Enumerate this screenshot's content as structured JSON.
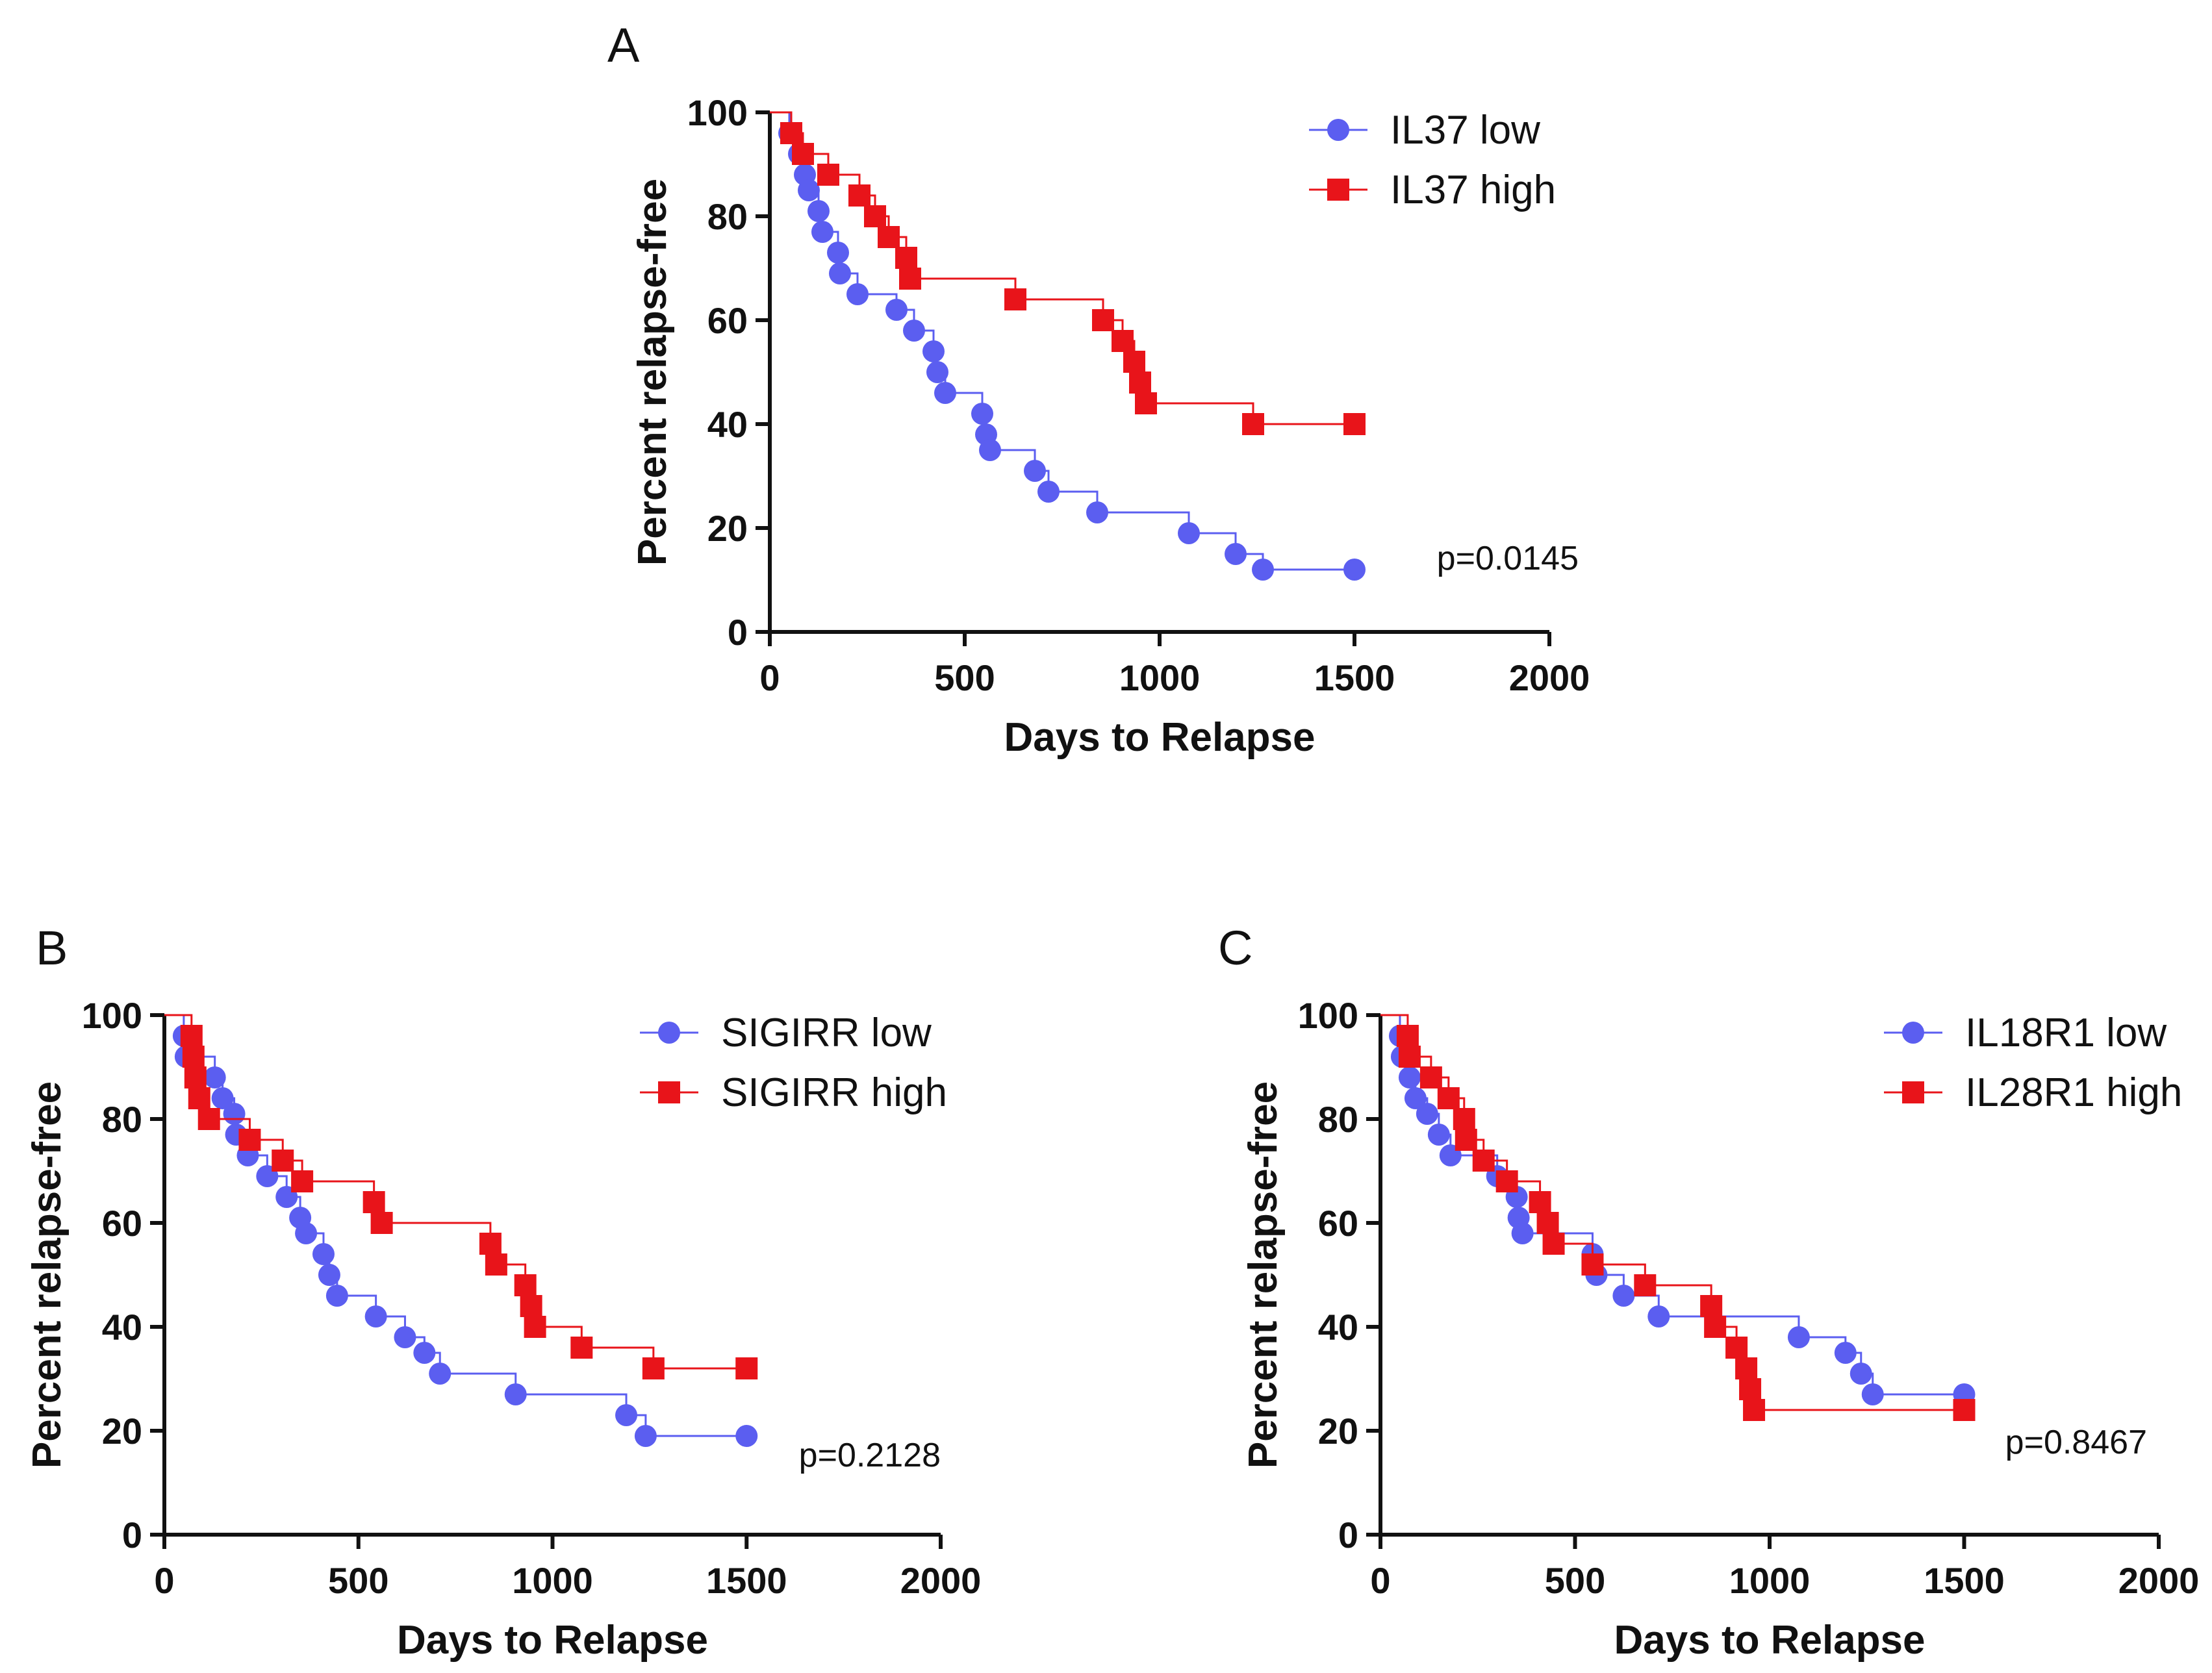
{
  "chart_data": [
    {
      "panel_label": "A",
      "type": "line",
      "title": "",
      "xlabel": "Days to Relapse",
      "ylabel": "Percent relapse-free",
      "xlim": [
        0,
        2000
      ],
      "ylim": [
        0,
        100
      ],
      "xticks": [
        "0",
        "500",
        "1000",
        "1500",
        "2000"
      ],
      "yticks": [
        "0",
        "20",
        "40",
        "60",
        "80",
        "100"
      ],
      "legend_position": "top-right",
      "annotation": "p=0.0145",
      "series": [
        {
          "name": "IL37 low",
          "color": "#5b5ef0",
          "marker": "circle",
          "steps": [
            [
              0,
              100
            ],
            [
              50,
              96
            ],
            [
              75,
              92
            ],
            [
              90,
              88
            ],
            [
              100,
              85
            ],
            [
              125,
              81
            ],
            [
              135,
              77
            ],
            [
              175,
              73
            ],
            [
              180,
              69
            ],
            [
              225,
              65
            ],
            [
              325,
              62
            ],
            [
              370,
              58
            ],
            [
              420,
              54
            ],
            [
              430,
              50
            ],
            [
              450,
              46
            ],
            [
              545,
              42
            ],
            [
              555,
              38
            ],
            [
              565,
              35
            ],
            [
              680,
              31
            ],
            [
              715,
              27
            ],
            [
              840,
              23
            ],
            [
              1075,
              19
            ],
            [
              1195,
              15
            ],
            [
              1265,
              12
            ],
            [
              1500,
              12
            ]
          ],
          "markers": [
            [
              50,
              96
            ],
            [
              75,
              92
            ],
            [
              90,
              88
            ],
            [
              100,
              85
            ],
            [
              125,
              81
            ],
            [
              135,
              77
            ],
            [
              175,
              73
            ],
            [
              180,
              69
            ],
            [
              225,
              65
            ],
            [
              325,
              62
            ],
            [
              370,
              58
            ],
            [
              420,
              54
            ],
            [
              430,
              50
            ],
            [
              450,
              46
            ],
            [
              545,
              42
            ],
            [
              555,
              38
            ],
            [
              565,
              35
            ],
            [
              680,
              31
            ],
            [
              715,
              27
            ],
            [
              840,
              23
            ],
            [
              1075,
              19
            ],
            [
              1195,
              15
            ],
            [
              1265,
              12
            ],
            [
              1500,
              12
            ]
          ]
        },
        {
          "name": "IL37 high",
          "color": "#e8141a",
          "marker": "square",
          "steps": [
            [
              0,
              100
            ],
            [
              55,
              96
            ],
            [
              85,
              92
            ],
            [
              150,
              88
            ],
            [
              230,
              84
            ],
            [
              270,
              80
            ],
            [
              305,
              76
            ],
            [
              350,
              72
            ],
            [
              360,
              68
            ],
            [
              630,
              64
            ],
            [
              855,
              60
            ],
            [
              905,
              56
            ],
            [
              935,
              52
            ],
            [
              950,
              48
            ],
            [
              965,
              44
            ],
            [
              1240,
              40
            ],
            [
              1500,
              40
            ]
          ],
          "markers": [
            [
              55,
              96
            ],
            [
              85,
              92
            ],
            [
              150,
              88
            ],
            [
              230,
              84
            ],
            [
              270,
              80
            ],
            [
              305,
              76
            ],
            [
              350,
              72
            ],
            [
              360,
              68
            ],
            [
              630,
              64
            ],
            [
              855,
              60
            ],
            [
              905,
              56
            ],
            [
              935,
              52
            ],
            [
              950,
              48
            ],
            [
              965,
              44
            ],
            [
              1240,
              40
            ],
            [
              1500,
              40
            ]
          ]
        }
      ]
    },
    {
      "panel_label": "B",
      "type": "line",
      "title": "",
      "xlabel": "Days to Relapse",
      "ylabel": "Percent relapse-free",
      "xlim": [
        0,
        2000
      ],
      "ylim": [
        0,
        100
      ],
      "xticks": [
        "0",
        "500",
        "1000",
        "1500",
        "2000"
      ],
      "yticks": [
        "0",
        "20",
        "40",
        "60",
        "80",
        "100"
      ],
      "legend_position": "top-right",
      "annotation": "p=0.2128",
      "series": [
        {
          "name": "SIGIRR low",
          "color": "#5b5ef0",
          "marker": "circle",
          "steps": [
            [
              0,
              100
            ],
            [
              50,
              96
            ],
            [
              55,
              92
            ],
            [
              130,
              88
            ],
            [
              150,
              84
            ],
            [
              180,
              81
            ],
            [
              185,
              77
            ],
            [
              215,
              73
            ],
            [
              265,
              69
            ],
            [
              315,
              65
            ],
            [
              350,
              61
            ],
            [
              365,
              58
            ],
            [
              410,
              54
            ],
            [
              425,
              50
            ],
            [
              445,
              46
            ],
            [
              545,
              42
            ],
            [
              620,
              38
            ],
            [
              670,
              35
            ],
            [
              710,
              31
            ],
            [
              905,
              27
            ],
            [
              1190,
              23
            ],
            [
              1240,
              19
            ],
            [
              1500,
              19
            ]
          ],
          "markers": [
            [
              50,
              96
            ],
            [
              55,
              92
            ],
            [
              130,
              88
            ],
            [
              150,
              84
            ],
            [
              180,
              81
            ],
            [
              185,
              77
            ],
            [
              215,
              73
            ],
            [
              265,
              69
            ],
            [
              315,
              65
            ],
            [
              350,
              61
            ],
            [
              365,
              58
            ],
            [
              410,
              54
            ],
            [
              425,
              50
            ],
            [
              445,
              46
            ],
            [
              545,
              42
            ],
            [
              620,
              38
            ],
            [
              670,
              35
            ],
            [
              710,
              31
            ],
            [
              905,
              27
            ],
            [
              1190,
              23
            ],
            [
              1240,
              19
            ],
            [
              1500,
              19
            ]
          ]
        },
        {
          "name": "SIGIRR high",
          "color": "#e8141a",
          "marker": "square",
          "steps": [
            [
              0,
              100
            ],
            [
              70,
              96
            ],
            [
              75,
              92
            ],
            [
              80,
              88
            ],
            [
              90,
              84
            ],
            [
              115,
              80
            ],
            [
              220,
              76
            ],
            [
              305,
              72
            ],
            [
              355,
              68
            ],
            [
              540,
              64
            ],
            [
              560,
              60
            ],
            [
              840,
              56
            ],
            [
              855,
              52
            ],
            [
              930,
              48
            ],
            [
              945,
              44
            ],
            [
              955,
              40
            ],
            [
              1075,
              36
            ],
            [
              1260,
              32
            ],
            [
              1500,
              32
            ]
          ],
          "markers": [
            [
              70,
              96
            ],
            [
              75,
              92
            ],
            [
              80,
              88
            ],
            [
              90,
              84
            ],
            [
              115,
              80
            ],
            [
              220,
              76
            ],
            [
              305,
              72
            ],
            [
              355,
              68
            ],
            [
              540,
              64
            ],
            [
              560,
              60
            ],
            [
              840,
              56
            ],
            [
              855,
              52
            ],
            [
              930,
              48
            ],
            [
              945,
              44
            ],
            [
              955,
              40
            ],
            [
              1075,
              36
            ],
            [
              1260,
              32
            ],
            [
              1500,
              32
            ]
          ]
        }
      ]
    },
    {
      "panel_label": "C",
      "type": "line",
      "title": "",
      "xlabel": "Days to Relapse",
      "ylabel": "Percent relapse-free",
      "xlim": [
        0,
        2000
      ],
      "ylim": [
        0,
        100
      ],
      "xticks": [
        "0",
        "500",
        "1000",
        "1500",
        "2000"
      ],
      "yticks": [
        "0",
        "20",
        "40",
        "60",
        "80",
        "100"
      ],
      "legend_position": "top-right",
      "annotation": "p=0.8467",
      "series": [
        {
          "name": "IL18R1 low",
          "color": "#5b5ef0",
          "marker": "circle",
          "steps": [
            [
              0,
              100
            ],
            [
              50,
              96
            ],
            [
              55,
              92
            ],
            [
              75,
              88
            ],
            [
              90,
              84
            ],
            [
              120,
              81
            ],
            [
              150,
              77
            ],
            [
              180,
              73
            ],
            [
              270,
              73
            ],
            [
              300,
              69
            ],
            [
              350,
              65
            ],
            [
              355,
              61
            ],
            [
              365,
              58
            ],
            [
              545,
              54
            ],
            [
              555,
              50
            ],
            [
              625,
              46
            ],
            [
              715,
              42
            ],
            [
              1075,
              38
            ],
            [
              1195,
              35
            ],
            [
              1235,
              31
            ],
            [
              1265,
              27
            ],
            [
              1500,
              27
            ]
          ],
          "markers": [
            [
              50,
              96
            ],
            [
              55,
              92
            ],
            [
              75,
              88
            ],
            [
              90,
              84
            ],
            [
              120,
              81
            ],
            [
              150,
              77
            ],
            [
              180,
              73
            ],
            [
              300,
              69
            ],
            [
              350,
              65
            ],
            [
              355,
              61
            ],
            [
              365,
              58
            ],
            [
              545,
              54
            ],
            [
              555,
              50
            ],
            [
              625,
              46
            ],
            [
              715,
              42
            ],
            [
              1075,
              38
            ],
            [
              1195,
              35
            ],
            [
              1235,
              31
            ],
            [
              1265,
              27
            ],
            [
              1500,
              27
            ]
          ]
        },
        {
          "name": "IL28R1 high",
          "color": "#e8141a",
          "marker": "square",
          "steps": [
            [
              0,
              100
            ],
            [
              70,
              96
            ],
            [
              75,
              92
            ],
            [
              130,
              88
            ],
            [
              175,
              84
            ],
            [
              215,
              80
            ],
            [
              220,
              76
            ],
            [
              265,
              72
            ],
            [
              325,
              68
            ],
            [
              410,
              64
            ],
            [
              430,
              60
            ],
            [
              445,
              56
            ],
            [
              545,
              52
            ],
            [
              680,
              48
            ],
            [
              850,
              44
            ],
            [
              860,
              40
            ],
            [
              915,
              36
            ],
            [
              940,
              32
            ],
            [
              950,
              28
            ],
            [
              960,
              24
            ],
            [
              1500,
              24
            ]
          ],
          "markers": [
            [
              70,
              96
            ],
            [
              75,
              92
            ],
            [
              130,
              88
            ],
            [
              175,
              84
            ],
            [
              215,
              80
            ],
            [
              220,
              76
            ],
            [
              265,
              72
            ],
            [
              325,
              68
            ],
            [
              410,
              64
            ],
            [
              430,
              60
            ],
            [
              445,
              56
            ],
            [
              545,
              52
            ],
            [
              680,
              48
            ],
            [
              850,
              44
            ],
            [
              860,
              40
            ],
            [
              915,
              36
            ],
            [
              940,
              32
            ],
            [
              950,
              28
            ],
            [
              960,
              24
            ],
            [
              1500,
              24
            ]
          ]
        }
      ]
    }
  ]
}
